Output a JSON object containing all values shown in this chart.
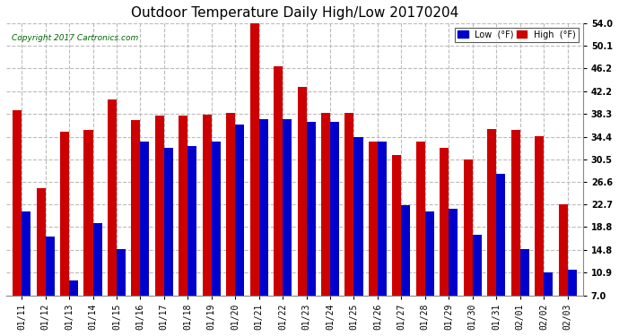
{
  "title": "Outdoor Temperature Daily High/Low 20170204",
  "copyright": "Copyright 2017 Cartronics.com",
  "legend_low": "Low  (°F)",
  "legend_high": "High  (°F)",
  "dates": [
    "01/11",
    "01/12",
    "01/13",
    "01/14",
    "01/15",
    "01/16",
    "01/17",
    "01/18",
    "01/19",
    "01/20",
    "01/21",
    "01/22",
    "01/23",
    "01/24",
    "01/25",
    "01/26",
    "01/27",
    "01/28",
    "01/29",
    "01/30",
    "01/31",
    "02/01",
    "02/02",
    "02/03"
  ],
  "highs": [
    39.0,
    25.5,
    35.2,
    35.5,
    40.8,
    37.2,
    38.0,
    38.0,
    38.2,
    38.5,
    54.2,
    46.5,
    43.0,
    38.5,
    38.5,
    33.5,
    31.2,
    33.5,
    32.5,
    30.5,
    35.8,
    35.5,
    34.5,
    22.7
  ],
  "lows": [
    21.5,
    17.2,
    9.5,
    19.5,
    15.0,
    33.5,
    32.5,
    32.8,
    33.5,
    36.5,
    37.5,
    37.5,
    37.0,
    37.0,
    34.4,
    33.5,
    22.5,
    21.5,
    22.0,
    17.5,
    28.0,
    15.0,
    11.0,
    11.5
  ],
  "low_color": "#0000cc",
  "high_color": "#cc0000",
  "bg_color": "#ffffff",
  "ylim": [
    7.0,
    54.0
  ],
  "yticks": [
    7.0,
    10.9,
    14.8,
    18.8,
    22.7,
    26.6,
    30.5,
    34.4,
    38.3,
    42.2,
    46.2,
    50.1,
    54.0
  ],
  "title_fontsize": 11,
  "tick_fontsize": 7,
  "bar_width": 0.38
}
